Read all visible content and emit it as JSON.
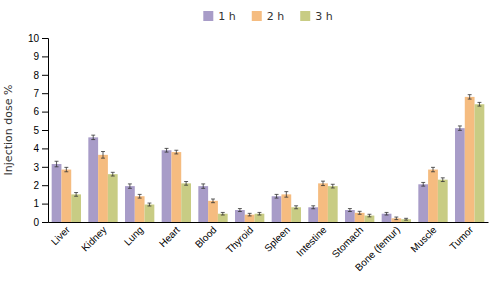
{
  "chart_data": {
    "type": "bar",
    "categories": [
      "Liver",
      "Kidney",
      "Lung",
      "Heart",
      "Blood",
      "Thyroid",
      "Spleen",
      "Intestine",
      "Stomach",
      "Bone (femur)",
      "Muscle",
      "Tumor"
    ],
    "series": [
      {
        "name": "1 h",
        "color": "#a89cc8",
        "values": [
          3.15,
          4.6,
          1.95,
          3.9,
          1.95,
          0.65,
          1.4,
          0.8,
          0.65,
          0.45,
          2.05,
          5.1
        ],
        "errors": [
          0.15,
          0.12,
          0.12,
          0.1,
          0.12,
          0.08,
          0.1,
          0.08,
          0.08,
          0.07,
          0.1,
          0.12
        ]
      },
      {
        "name": "2 h",
        "color": "#f5bc80",
        "values": [
          2.85,
          3.65,
          1.4,
          3.8,
          1.15,
          0.4,
          1.5,
          2.1,
          0.5,
          0.2,
          2.85,
          6.8
        ],
        "errors": [
          0.12,
          0.18,
          0.1,
          0.1,
          0.1,
          0.07,
          0.15,
          0.12,
          0.08,
          0.07,
          0.12,
          0.12
        ]
      },
      {
        "name": "3 h",
        "color": "#c8cc84",
        "values": [
          1.5,
          2.6,
          0.95,
          2.1,
          0.45,
          0.45,
          0.8,
          1.95,
          0.35,
          0.15,
          2.3,
          6.4
        ],
        "errors": [
          0.1,
          0.1,
          0.08,
          0.1,
          0.07,
          0.07,
          0.08,
          0.1,
          0.07,
          0.05,
          0.1,
          0.1
        ]
      }
    ],
    "ylabel": "Injection dose %",
    "ylim": [
      0,
      10
    ],
    "yticks": [
      0,
      1,
      2,
      3,
      4,
      5,
      6,
      7,
      8,
      9,
      10
    ],
    "grid": false,
    "legend": "top"
  }
}
